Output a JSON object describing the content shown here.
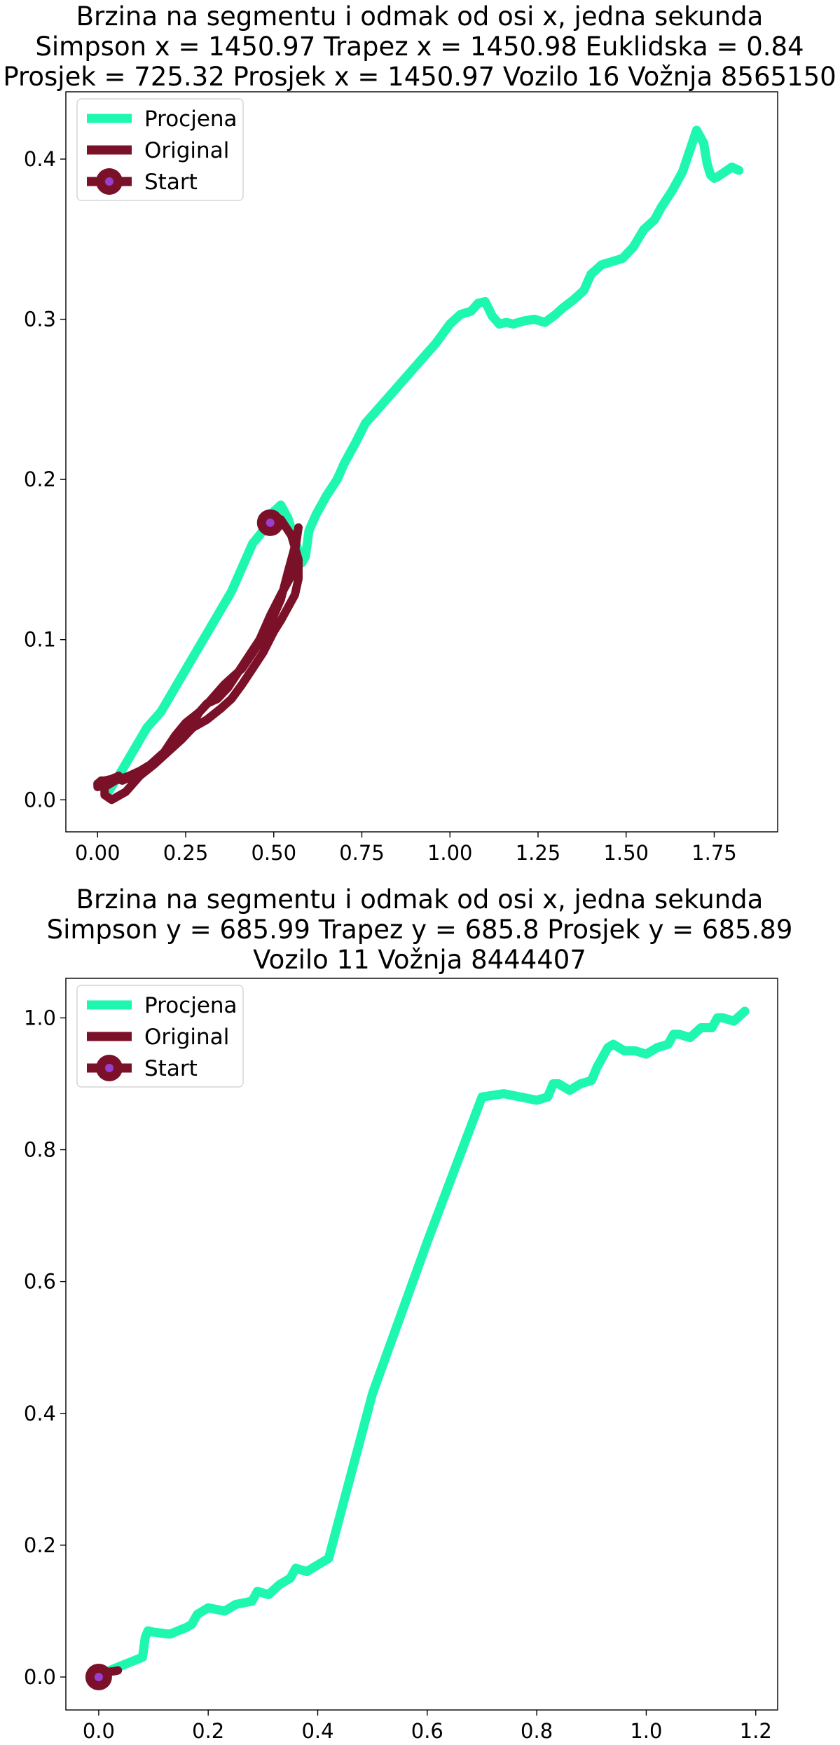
{
  "chart_data": [
    {
      "type": "line",
      "title_lines": [
        "Brzina na segmentu i odmak od osi x, jedna sekunda",
        "Simpson x = 1450.97 Trapez x = 1450.98 Euklidska = 0.84",
        "Prosjek = 725.32 Prosjek x = 1450.97 Vozilo 16 Vožnja 8565150"
      ],
      "xlabel": "",
      "ylabel": "",
      "xlim": [
        -0.09,
        1.93
      ],
      "ylim": [
        -0.02,
        0.442
      ],
      "xticks": [
        0.0,
        0.25,
        0.5,
        0.75,
        1.0,
        1.25,
        1.5,
        1.75
      ],
      "xtick_labels": [
        "0.00",
        "0.25",
        "0.50",
        "0.75",
        "1.00",
        "1.25",
        "1.50",
        "1.75"
      ],
      "yticks": [
        0.0,
        0.1,
        0.2,
        0.3,
        0.4
      ],
      "ytick_labels": [
        "0.0",
        "0.1",
        "0.2",
        "0.3",
        "0.4"
      ],
      "grid": false,
      "legend_position": "top-left",
      "legend": [
        {
          "label": "Procjena",
          "kind": "line",
          "color": "#1ef7b0"
        },
        {
          "label": "Original",
          "kind": "line",
          "color": "#7b1029"
        },
        {
          "label": "Start",
          "kind": "marker",
          "color": "#7b1029",
          "inner_color": "#9a3fd0"
        }
      ],
      "series": [
        {
          "role": "estimate",
          "color": "#1ef7b0",
          "x": [
            0.0,
            0.03,
            0.06,
            0.1,
            0.14,
            0.18,
            0.22,
            0.26,
            0.3,
            0.34,
            0.38,
            0.41,
            0.44,
            0.47,
            0.5,
            0.52,
            0.54,
            0.56,
            0.58,
            0.59,
            0.6,
            0.62,
            0.65,
            0.68,
            0.7,
            0.73,
            0.76,
            0.8,
            0.84,
            0.88,
            0.92,
            0.96,
            1.0,
            1.03,
            1.06,
            1.08,
            1.1,
            1.12,
            1.14,
            1.16,
            1.18,
            1.21,
            1.24,
            1.27,
            1.3,
            1.32,
            1.35,
            1.38,
            1.4,
            1.43,
            1.46,
            1.49,
            1.52,
            1.55,
            1.58,
            1.6,
            1.63,
            1.66,
            1.68,
            1.7,
            1.72,
            1.73,
            1.74,
            1.75,
            1.76,
            1.78,
            1.8,
            1.82
          ],
          "y": [
            0.01,
            0.005,
            0.015,
            0.03,
            0.045,
            0.055,
            0.07,
            0.085,
            0.1,
            0.115,
            0.13,
            0.145,
            0.16,
            0.168,
            0.18,
            0.184,
            0.176,
            0.162,
            0.148,
            0.152,
            0.168,
            0.178,
            0.19,
            0.2,
            0.21,
            0.222,
            0.235,
            0.245,
            0.255,
            0.265,
            0.275,
            0.285,
            0.297,
            0.303,
            0.305,
            0.31,
            0.311,
            0.302,
            0.297,
            0.298,
            0.297,
            0.299,
            0.3,
            0.298,
            0.303,
            0.307,
            0.312,
            0.318,
            0.328,
            0.334,
            0.336,
            0.338,
            0.345,
            0.356,
            0.362,
            0.37,
            0.38,
            0.392,
            0.405,
            0.418,
            0.41,
            0.397,
            0.39,
            0.388,
            0.389,
            0.392,
            0.395,
            0.393
          ]
        },
        {
          "role": "original",
          "color": "#7b1029",
          "x": [
            0.49,
            0.52,
            0.55,
            0.57,
            0.57,
            0.56,
            0.54,
            0.52,
            0.5,
            0.47,
            0.44,
            0.41,
            0.38,
            0.35,
            0.31,
            0.27,
            0.24,
            0.2,
            0.16,
            0.12,
            0.08,
            0.04,
            0.02,
            0.02,
            0.05,
            0.09,
            0.12,
            0.15,
            0.18,
            0.22,
            0.26,
            0.29,
            0.31,
            0.34,
            0.37,
            0.4,
            0.43,
            0.46,
            0.49,
            0.52,
            0.55,
            0.56,
            0.57,
            0.56,
            0.54,
            0.52,
            0.49,
            0.45,
            0.41,
            0.36,
            0.32,
            0.29,
            0.25,
            0.22,
            0.19,
            0.16,
            0.13,
            0.1,
            0.07,
            0.05,
            0.04,
            0.02,
            0.01,
            0.0,
            0.0,
            0.01,
            0.02,
            0.04,
            0.06
          ],
          "y": [
            0.173,
            0.175,
            0.165,
            0.15,
            0.138,
            0.128,
            0.12,
            0.112,
            0.105,
            0.092,
            0.082,
            0.072,
            0.063,
            0.057,
            0.05,
            0.045,
            0.038,
            0.03,
            0.022,
            0.015,
            0.005,
            0.0,
            0.003,
            0.008,
            0.012,
            0.015,
            0.018,
            0.022,
            0.028,
            0.035,
            0.045,
            0.055,
            0.06,
            0.063,
            0.07,
            0.08,
            0.09,
            0.1,
            0.115,
            0.128,
            0.14,
            0.155,
            0.17,
            0.158,
            0.142,
            0.125,
            0.11,
            0.095,
            0.082,
            0.072,
            0.062,
            0.055,
            0.048,
            0.04,
            0.03,
            0.023,
            0.018,
            0.015,
            0.012,
            0.014,
            0.013,
            0.012,
            0.01,
            0.008,
            0.01,
            0.012,
            0.012,
            0.012,
            0.015
          ]
        }
      ],
      "start_point": {
        "x": 0.49,
        "y": 0.173
      }
    },
    {
      "type": "line",
      "title_lines": [
        "Brzina na segmentu i odmak od osi x, jedna sekunda",
        "Simpson y = 685.99 Trapez y = 685.8 Prosjek y = 685.89",
        "Vozilo 11 Vožnja 8444407"
      ],
      "xlabel": "",
      "ylabel": "",
      "xlim": [
        -0.06,
        1.24
      ],
      "ylim": [
        -0.05,
        1.06
      ],
      "xticks": [
        0.0,
        0.2,
        0.4,
        0.6,
        0.8,
        1.0,
        1.2
      ],
      "xtick_labels": [
        "0.0",
        "0.2",
        "0.4",
        "0.6",
        "0.8",
        "1.0",
        "1.2"
      ],
      "yticks": [
        0.0,
        0.2,
        0.4,
        0.6,
        0.8,
        1.0
      ],
      "ytick_labels": [
        "0.0",
        "0.2",
        "0.4",
        "0.6",
        "0.8",
        "1.0"
      ],
      "grid": false,
      "legend_position": "top-left",
      "legend": [
        {
          "label": "Procjena",
          "kind": "line",
          "color": "#1ef7b0"
        },
        {
          "label": "Original",
          "kind": "line",
          "color": "#7b1029"
        },
        {
          "label": "Start",
          "kind": "marker",
          "color": "#7b1029",
          "inner_color": "#9a3fd0"
        }
      ],
      "series": [
        {
          "role": "estimate",
          "color": "#1ef7b0",
          "x": [
            0.0,
            0.02,
            0.05,
            0.08,
            0.085,
            0.09,
            0.1,
            0.13,
            0.16,
            0.17,
            0.18,
            0.2,
            0.23,
            0.25,
            0.28,
            0.29,
            0.31,
            0.33,
            0.35,
            0.36,
            0.38,
            0.4,
            0.42,
            0.5,
            0.6,
            0.7,
            0.74,
            0.77,
            0.8,
            0.82,
            0.83,
            0.84,
            0.86,
            0.88,
            0.9,
            0.91,
            0.93,
            0.94,
            0.96,
            0.98,
            1.0,
            1.02,
            1.04,
            1.05,
            1.06,
            1.08,
            1.1,
            1.12,
            1.13,
            1.14,
            1.16,
            1.18
          ],
          "y": [
            0.0,
            0.01,
            0.02,
            0.03,
            0.06,
            0.07,
            0.068,
            0.065,
            0.075,
            0.08,
            0.095,
            0.105,
            0.1,
            0.11,
            0.115,
            0.13,
            0.125,
            0.14,
            0.15,
            0.165,
            0.16,
            0.17,
            0.18,
            0.43,
            0.66,
            0.88,
            0.885,
            0.88,
            0.875,
            0.88,
            0.9,
            0.9,
            0.89,
            0.9,
            0.905,
            0.925,
            0.955,
            0.96,
            0.95,
            0.95,
            0.945,
            0.955,
            0.96,
            0.975,
            0.975,
            0.97,
            0.985,
            0.985,
            1.0,
            1.0,
            0.995,
            1.01
          ]
        },
        {
          "role": "original",
          "color": "#7b1029",
          "x": [
            0.0,
            0.01,
            0.02,
            0.03,
            0.035
          ],
          "y": [
            0.0,
            0.004,
            0.008,
            0.009,
            0.01
          ]
        }
      ],
      "start_point": {
        "x": 0.0,
        "y": 0.0
      }
    }
  ]
}
